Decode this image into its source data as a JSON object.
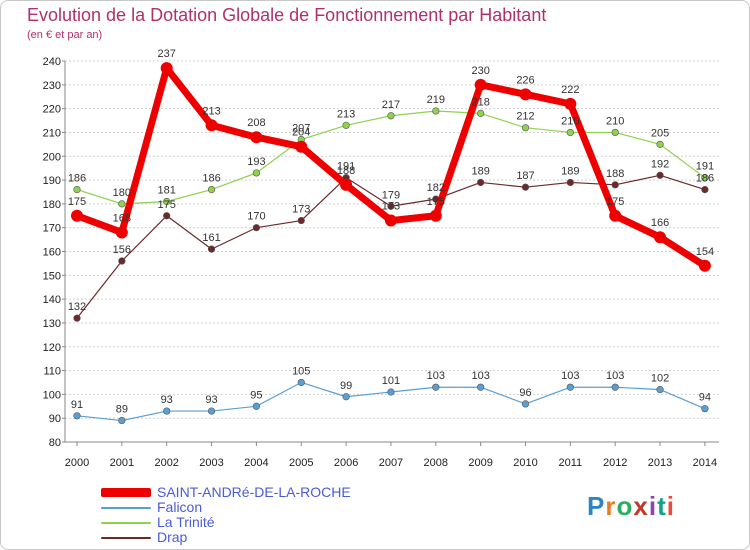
{
  "title": "Evolution de la Dotation Globale de Fonctionnement par Habitant",
  "subtitle": "(en € et par an)",
  "logo": {
    "text": "Proxiti",
    "colors": [
      "#2e86c1",
      "#e67e22",
      "#27ae60",
      "#c0392b",
      "#8e44ad",
      "#16a085",
      "#e74c3c"
    ]
  },
  "chart_data": {
    "type": "line",
    "title": "Evolution de la Dotation Globale de Fonctionnement par Habitant",
    "subtitle": "(en € et par an)",
    "xlabel": "",
    "ylabel": "",
    "categories": [
      "2000",
      "2001",
      "2002",
      "2003",
      "2004",
      "2005",
      "2006",
      "2007",
      "2008",
      "2009",
      "2010",
      "2011",
      "2012",
      "2013",
      "2014"
    ],
    "ylim": [
      80,
      240
    ],
    "yticks": [
      80,
      90,
      100,
      110,
      120,
      130,
      140,
      150,
      160,
      170,
      180,
      190,
      200,
      210,
      220,
      230,
      240
    ],
    "grid": "horizontal",
    "legend_position": "bottom-left",
    "series": [
      {
        "name": "Falicon",
        "color": "#5a9fd4",
        "values": [
          91,
          89,
          93,
          93,
          95,
          105,
          99,
          101,
          103,
          103,
          96,
          103,
          103,
          102,
          94
        ]
      },
      {
        "name": "La Trinité",
        "color": "#8ed24f",
        "values": [
          186,
          180,
          181,
          186,
          193,
          207,
          213,
          217,
          219,
          218,
          212,
          210,
          210,
          205,
          191
        ]
      },
      {
        "name": "Drap",
        "color": "#6b2a2a",
        "values": [
          132,
          156,
          175,
          161,
          170,
          173,
          191,
          179,
          182,
          189,
          187,
          189,
          188,
          192,
          186
        ]
      },
      {
        "name": "SAINT-ANDRé-DE-LA-ROCHE",
        "color": "#ee0000",
        "values": [
          175,
          168,
          237,
          213,
          208,
          204,
          188,
          173,
          175,
          230,
          226,
          222,
          175,
          166,
          154
        ]
      }
    ]
  }
}
